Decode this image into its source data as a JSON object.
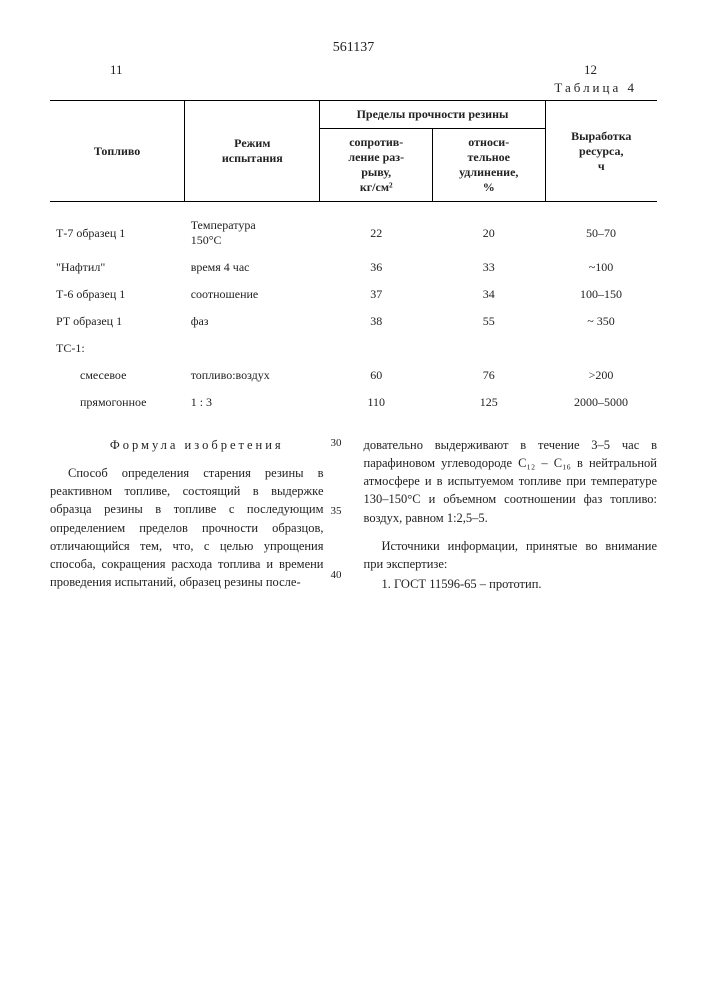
{
  "doc_number": "561137",
  "page_left": "11",
  "page_right": "12",
  "table_label": "Таблица 4",
  "table": {
    "headers": {
      "c1": "Топливо",
      "c2": "Режим\nиспытания",
      "c3_group": "Пределы прочности резины",
      "c3a": "сопротив-\nление раз-\nрыву,\nкг/см²",
      "c3b": "относи-\nтельное\nудлинение,\n%",
      "c4": "Выработка\nресурса,\nч"
    },
    "rows": [
      {
        "c1": "Т-7 образец 1",
        "c2": "Температура\n150°С",
        "v1": "22",
        "v2": "20",
        "v3": "50–70"
      },
      {
        "c1": "\"Нафтил\"",
        "c2": "время 4 час",
        "v1": "36",
        "v2": "33",
        "v3": "~100"
      },
      {
        "c1": "Т-6 образец 1",
        "c2": "соотношение",
        "v1": "37",
        "v2": "34",
        "v3": "100–150"
      },
      {
        "c1": "РТ образец 1",
        "c2": "фаз",
        "v1": "38",
        "v2": "55",
        "v3": "~ 350"
      },
      {
        "c1": "ТС-1:",
        "c2": "",
        "v1": "",
        "v2": "",
        "v3": ""
      },
      {
        "c1": "смесевое",
        "indent": true,
        "c2": "топливо:воздух",
        "v1": "60",
        "v2": "76",
        "v3": ">200"
      },
      {
        "c1": "прямогонное",
        "indent": true,
        "c2": "1 : 3",
        "v1": "110",
        "v2": "125",
        "v3": "2000–5000"
      }
    ]
  },
  "line_nums": {
    "a": "30",
    "b": "35",
    "c": "40"
  },
  "formula_title": "Формула изобретения",
  "col_left_text": "Способ определения старения резины в реактивном топливе, состоящий в выдержке образца резины в топливе с последующим определением пределов прочности образцов, отличающийся тем, что, с целью упрощения способа, сокращения расхода топлива и времени проведения испытаний, образец резины после-",
  "col_right_p1": "довательно выдерживают в течение 3–5 час в парафиновом углеводороде C₁₂ – C₁₆ в нейтральной атмосфере и в испытуемом топливе при температуре 130–150°С и объемном соотношении фаз топливо: воздух, равном 1:2,5–5.",
  "col_right_p2": "Источники информации, принятые во внимание при экспертизе:",
  "col_right_p3": "1. ГОСТ 11596-65 – прототип."
}
